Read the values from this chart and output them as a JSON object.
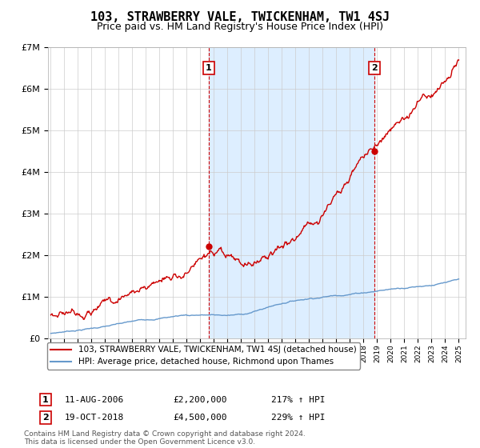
{
  "title": "103, STRAWBERRY VALE, TWICKENHAM, TW1 4SJ",
  "subtitle": "Price paid vs. HM Land Registry's House Price Index (HPI)",
  "legend_line1": "103, STRAWBERRY VALE, TWICKENHAM, TW1 4SJ (detached house)",
  "legend_line2": "HPI: Average price, detached house, Richmond upon Thames",
  "sale1_date": "11-AUG-2006",
  "sale1_price": "£2,200,000",
  "sale1_hpi": "217% ↑ HPI",
  "sale1_x": 2006.62,
  "sale1_y": 2200000,
  "sale2_date": "19-OCT-2018",
  "sale2_price": "£4,500,000",
  "sale2_hpi": "229% ↑ HPI",
  "sale2_x": 2018.8,
  "sale2_y": 4500000,
  "footer": "Contains HM Land Registry data © Crown copyright and database right 2024.\nThis data is licensed under the Open Government Licence v3.0.",
  "ylim": [
    0,
    7000000
  ],
  "xlim_min": 1994.8,
  "xlim_max": 2025.5,
  "red_color": "#cc0000",
  "blue_color": "#6699cc",
  "shade_color": "#ddeeff",
  "background_color": "#ffffff",
  "grid_color": "#cccccc",
  "title_fontsize": 11,
  "subtitle_fontsize": 9
}
